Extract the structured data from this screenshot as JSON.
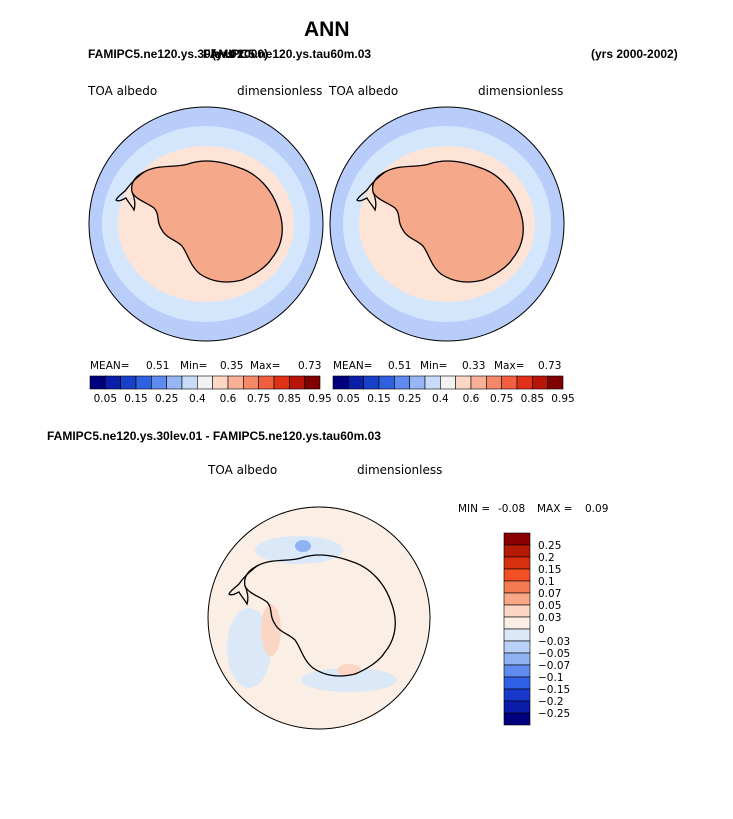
{
  "page": {
    "title": "ANN",
    "case_title_a": "FAMIPC5.ne120.ys.30lev.01",
    "case_title_b": "FAMIPC5.ne120.ys.tau60m.03",
    "years_left": "(yrs 2000)",
    "years_right": "(yrs 2000-2002)",
    "diff_title": "FAMIPC5.ne120.ys.30lev.01 - FAMIPC5.ne120.ys.tau60m.03"
  },
  "panels": [
    {
      "variable": "TOA albedo",
      "units": "dimensionless",
      "stats": {
        "mean_label": "MEAN=",
        "mean": "0.51",
        "min_label": "Min=",
        "min": "0.35",
        "max_label": "Max=",
        "max": "0.73"
      }
    },
    {
      "variable": "TOA albedo",
      "units": "dimensionless",
      "stats": {
        "mean_label": "MEAN=",
        "mean": "0.51",
        "min_label": "Min=",
        "min": "0.33",
        "max_label": "Max=",
        "max": "0.73"
      }
    }
  ],
  "abs_colorbar": {
    "colors": [
      "#00007f",
      "#0a1ea8",
      "#1840c8",
      "#2f60e0",
      "#5f8af0",
      "#96b6f6",
      "#c8dcfa",
      "#f2f2f2",
      "#fcd8c4",
      "#f8b096",
      "#f58868",
      "#f06040",
      "#e03018",
      "#b81408",
      "#800000"
    ],
    "tick_labels": [
      "0.05",
      "0.15",
      "0.25",
      "0.4",
      "0.6",
      "0.75",
      "0.85",
      "0.95"
    ]
  },
  "diff_panel": {
    "variable": "TOA albedo",
    "units": "dimensionless",
    "min_label": "MIN =",
    "min": "-0.08",
    "max_label": "MAX =",
    "max": "0.09"
  },
  "diff_colorbar": {
    "colors": [
      "#8a0000",
      "#b51a05",
      "#d8300f",
      "#f24f24",
      "#f47a52",
      "#f8a787",
      "#fcd6c4",
      "#fbeee4",
      "#dbe8f8",
      "#b9d1f6",
      "#8fb2f2",
      "#5f8cee",
      "#3060e6",
      "#1838cc",
      "#0c1caa",
      "#00007f"
    ],
    "labels": [
      "0.25",
      "0.2",
      "0.15",
      "0.1",
      "0.07",
      "0.05",
      "0.03",
      "0",
      "−0.03",
      "−0.05",
      "−0.07",
      "−0.1",
      "−0.15",
      "−0.2",
      "−0.25"
    ]
  },
  "map_colors": {
    "ocean_far": "#b8cdfa",
    "ocean_mid": "#d4e6fc",
    "ocean_near": "#fde4d6",
    "ice_edge": "#f9c4a8",
    "ice_sheet": "#f6a88a",
    "diff_base": "#fbeee4",
    "diff_pos": "#fcd6c4",
    "diff_neg": "#dbe8f8",
    "diff_neg_strong": "#8fb2f2"
  }
}
